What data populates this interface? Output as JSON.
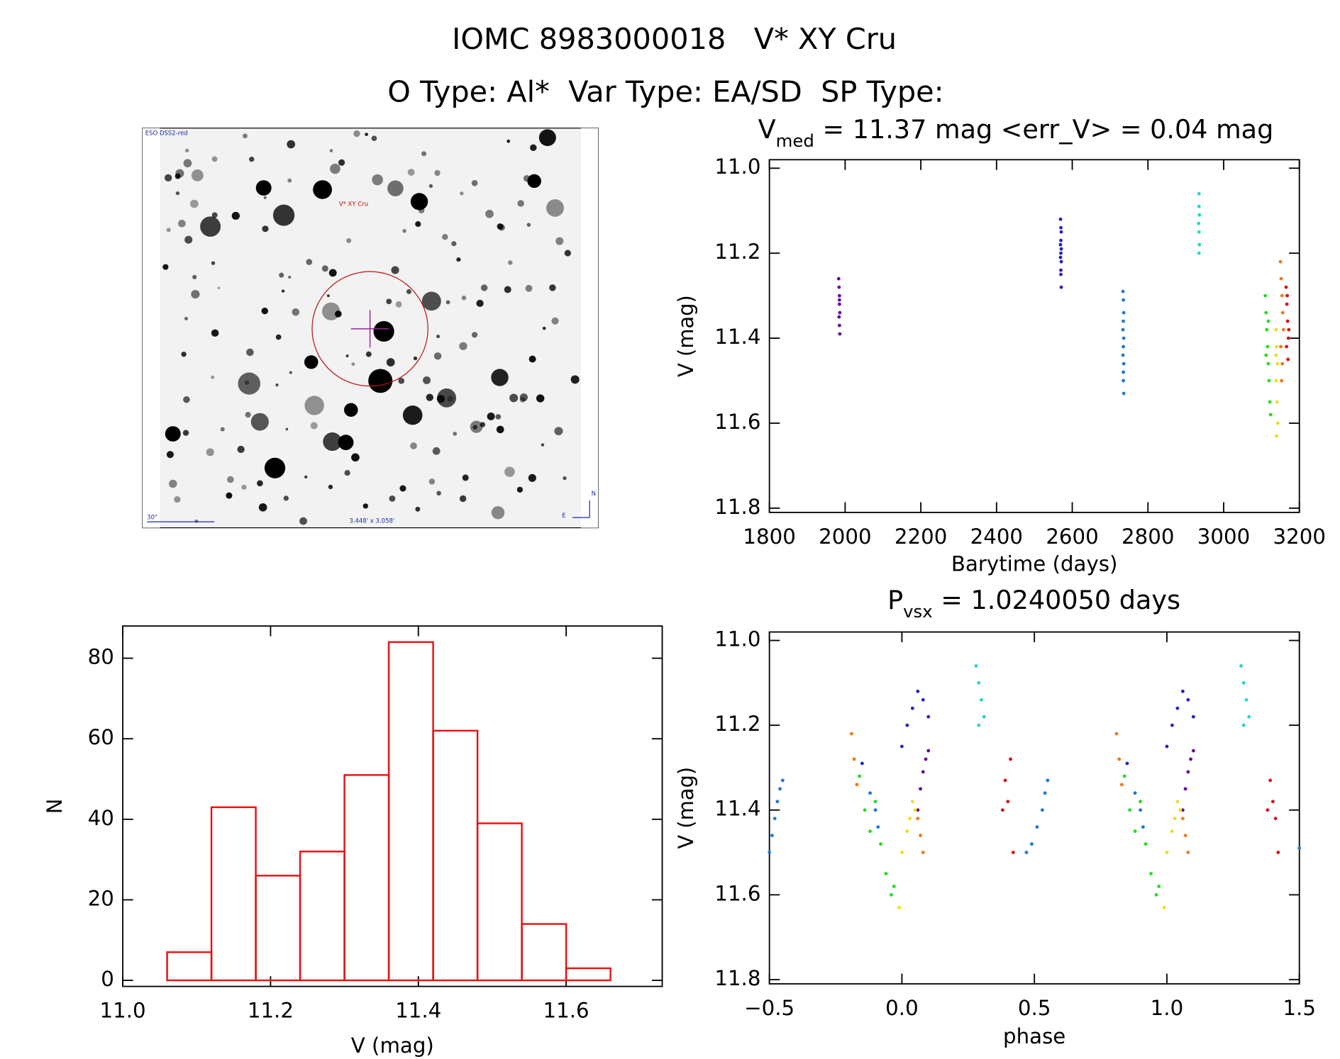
{
  "header": {
    "title": "IOMC 8983000018   V* XY Cru",
    "subtitle": "O Type: Al*  Var Type: EA/SD  SP Type:"
  },
  "image": {
    "survey": "ESO DSS2-red",
    "target": "V* XY Cru",
    "scale": "30\"",
    "size": "3.448' x 3.058'",
    "north": "N",
    "east": "E"
  },
  "chart_data": [
    {
      "type": "scatter",
      "title": {
        "main": "V",
        "sub": "med",
        "rest": " = 11.37 mag <err_V> = 0.04 mag"
      },
      "x_label": "Barytime (days)",
      "y_label": "V (mag)",
      "xlim": [
        1800,
        3200
      ],
      "ylim": [
        11.81,
        10.98
      ],
      "xticks": [
        1800,
        2000,
        2200,
        2400,
        2600,
        2800,
        3000,
        3200
      ],
      "yticks": [
        {
          "value": 11.0,
          "label": "11.0"
        },
        11.2,
        11.4,
        11.6,
        11.8
      ],
      "series": [
        {
          "color": "#6a0a9a",
          "x": [
            1983,
            1984,
            1985,
            1985,
            1986,
            1984,
            1985,
            1986,
            1985
          ],
          "values": [
            11.26,
            11.28,
            11.3,
            11.32,
            11.34,
            11.35,
            11.37,
            11.39,
            11.31
          ]
        },
        {
          "color": "#2222c8",
          "x": [
            2569,
            2570,
            2571,
            2570,
            2569,
            2571,
            2570,
            2569,
            2571,
            2570,
            2570,
            2571
          ],
          "values": [
            11.12,
            11.14,
            11.15,
            11.17,
            11.18,
            11.19,
            11.2,
            11.21,
            11.22,
            11.24,
            11.25,
            11.28
          ]
        },
        {
          "color": "#1e78d8",
          "x": [
            2734,
            2735,
            2736,
            2735,
            2734,
            2736,
            2735,
            2734,
            2736,
            2735,
            2735,
            2736
          ],
          "values": [
            11.29,
            11.31,
            11.34,
            11.36,
            11.38,
            11.4,
            11.42,
            11.44,
            11.46,
            11.48,
            11.5,
            11.53
          ]
        },
        {
          "color": "#22d8c8",
          "x": [
            2935,
            2935,
            2936,
            2934,
            2935,
            2936,
            2935
          ],
          "values": [
            11.06,
            11.09,
            11.11,
            11.13,
            11.15,
            11.18,
            11.2
          ]
        },
        {
          "color": "#22dd22",
          "x": [
            3110,
            3112,
            3114,
            3116,
            3118,
            3120,
            3122,
            3124,
            3112,
            3118
          ],
          "values": [
            11.3,
            11.34,
            11.38,
            11.42,
            11.46,
            11.5,
            11.55,
            11.58,
            11.44,
            11.36
          ]
        },
        {
          "color": "#e8e020",
          "x": [
            3138,
            3140,
            3142,
            3139,
            3141,
            3143,
            3140,
            3138
          ],
          "values": [
            11.38,
            11.42,
            11.46,
            11.5,
            11.55,
            11.6,
            11.63,
            11.44
          ]
        },
        {
          "color": "#f07818",
          "x": [
            3150,
            3152,
            3154,
            3156,
            3158,
            3151,
            3155,
            3153
          ],
          "values": [
            11.22,
            11.26,
            11.3,
            11.34,
            11.38,
            11.42,
            11.46,
            11.5
          ]
        },
        {
          "color": "#e01010",
          "x": [
            3165,
            3167,
            3169,
            3171,
            3166,
            3170,
            3168,
            3172
          ],
          "values": [
            11.28,
            11.32,
            11.36,
            11.4,
            11.42,
            11.45,
            11.3,
            11.38
          ]
        }
      ]
    },
    {
      "type": "scatter",
      "title": {
        "main": "P",
        "sub": "vsx",
        "rest": " = 1.0240050 days"
      },
      "x_label": "phase",
      "y_label": "V (mag)",
      "xlim": [
        -0.5,
        1.5
      ],
      "ylim": [
        11.81,
        10.98
      ],
      "xticks": [
        {
          "value": -0.5,
          "label": "−0.5"
        },
        {
          "value": 0,
          "label": "0.0"
        },
        0.5,
        {
          "value": 1,
          "label": "1.0"
        },
        1.5
      ],
      "yticks": [
        {
          "value": 11.0,
          "label": "11.0"
        },
        11.2,
        11.4,
        11.6,
        11.8
      ],
      "series": [
        {
          "color": "#1e78d8",
          "x": [
            -0.5,
            -0.49,
            -0.48,
            -0.47,
            -0.46,
            -0.45,
            0.47,
            0.49,
            0.51,
            0.53,
            0.54,
            0.55,
            -0.12,
            -0.1,
            -0.09,
            0.88,
            0.9,
            0.91,
            1.5
          ],
          "values": [
            11.5,
            11.46,
            11.42,
            11.38,
            11.35,
            11.33,
            11.5,
            11.48,
            11.44,
            11.4,
            11.36,
            11.33,
            11.36,
            11.4,
            11.44,
            11.36,
            11.4,
            11.44,
            11.49
          ]
        },
        {
          "color": "#2222c8",
          "x": [
            0.0,
            0.02,
            0.04,
            0.06,
            0.08,
            0.1,
            1.0,
            1.02,
            1.04,
            1.06,
            1.08,
            1.1,
            -0.15,
            0.85
          ],
          "values": [
            11.25,
            11.2,
            11.16,
            11.12,
            11.14,
            11.18,
            11.25,
            11.2,
            11.16,
            11.12,
            11.14,
            11.18,
            11.29,
            11.29
          ]
        },
        {
          "color": "#6a0a9a",
          "x": [
            0.06,
            0.07,
            0.08,
            0.09,
            0.1,
            1.06,
            1.07,
            1.08,
            1.09,
            1.1
          ],
          "values": [
            11.4,
            11.35,
            11.31,
            11.28,
            11.26,
            11.4,
            11.35,
            11.31,
            11.28,
            11.26
          ]
        },
        {
          "color": "#22d8c8",
          "x": [
            0.28,
            0.29,
            0.3,
            0.31,
            0.29,
            1.28,
            1.29,
            1.3,
            1.31,
            1.29
          ],
          "values": [
            11.06,
            11.1,
            11.14,
            11.18,
            11.2,
            11.06,
            11.1,
            11.14,
            11.18,
            11.2
          ]
        },
        {
          "color": "#e01010",
          "x": [
            0.38,
            0.39,
            0.4,
            0.41,
            0.42,
            1.38,
            1.39,
            1.4,
            1.41,
            1.42
          ],
          "values": [
            11.4,
            11.33,
            11.38,
            11.28,
            11.5,
            11.4,
            11.33,
            11.38,
            11.42,
            11.5
          ]
        },
        {
          "color": "#f07818",
          "x": [
            -0.19,
            -0.18,
            -0.17,
            0.06,
            0.07,
            0.08,
            0.81,
            0.82,
            0.83,
            1.06,
            1.07,
            1.08
          ],
          "values": [
            11.22,
            11.28,
            11.34,
            11.42,
            11.46,
            11.5,
            11.22,
            11.28,
            11.34,
            11.42,
            11.46,
            11.5
          ]
        },
        {
          "color": "#22dd22",
          "x": [
            -0.16,
            -0.14,
            -0.12,
            -0.1,
            -0.08,
            -0.06,
            -0.04,
            -0.03,
            0.84,
            0.86,
            0.88,
            0.9,
            0.92,
            0.94,
            0.96,
            0.97
          ],
          "values": [
            11.32,
            11.4,
            11.45,
            11.38,
            11.48,
            11.55,
            11.6,
            11.58,
            11.32,
            11.4,
            11.45,
            11.38,
            11.48,
            11.55,
            11.6,
            11.58
          ]
        },
        {
          "color": "#e8e020",
          "x": [
            -0.01,
            0.0,
            0.02,
            0.03,
            0.04,
            0.05,
            0.99,
            1.0,
            1.02,
            1.03,
            1.04,
            1.05
          ],
          "values": [
            11.63,
            11.5,
            11.45,
            11.42,
            11.38,
            11.4,
            11.63,
            11.5,
            11.45,
            11.42,
            11.38,
            11.4
          ]
        }
      ]
    },
    {
      "type": "histogram",
      "x_label": "V (mag)",
      "y_label": "N",
      "color": "#e81010",
      "bins": [
        11.06,
        11.12,
        11.18,
        11.24,
        11.3,
        11.36,
        11.42,
        11.48,
        11.54,
        11.6,
        11.66
      ],
      "values": [
        7,
        43,
        26,
        32,
        51,
        84,
        62,
        39,
        14,
        3
      ],
      "xlim": [
        11.0,
        11.73
      ],
      "ylim": [
        -1.5,
        88
      ],
      "xticks": [
        {
          "value": 11,
          "label": "11.0"
        },
        11.2,
        11.4,
        11.6
      ],
      "yticks": [
        0,
        20,
        40,
        60,
        80
      ]
    }
  ]
}
